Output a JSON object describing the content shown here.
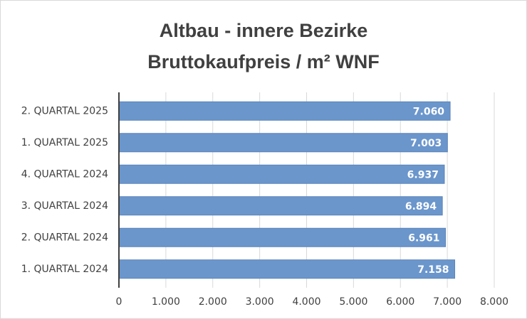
{
  "chart_data": {
    "type": "hbar",
    "title": [
      "Altbau - innere Bezirke",
      "Bruttokaufpreis / m² WNF"
    ],
    "categories": [
      "2. QUARTAL 2025",
      "1. QUARTAL 2025",
      "4. QUARTAL 2024",
      "3. QUARTAL 2024",
      "2. QUARTAL 2024",
      "1. QUARTAL 2024"
    ],
    "values": [
      7060,
      7003,
      6937,
      6894,
      6961,
      7158
    ],
    "value_labels": [
      "7.060",
      "7.003",
      "6.937",
      "6.894",
      "6.961",
      "7.158"
    ],
    "color": "#6b96cc",
    "xlim": [
      0,
      8000
    ],
    "xticks": [
      0,
      {
        "value": 1000,
        "label": "1.000"
      },
      {
        "value": 2000,
        "label": "2.000"
      },
      {
        "value": 3000,
        "label": "3.000"
      },
      {
        "value": 4000,
        "label": "4.000"
      },
      {
        "value": 5000,
        "label": "5.000"
      },
      {
        "value": 6000,
        "label": "6.000"
      },
      {
        "value": 7000,
        "label": "7.000"
      },
      {
        "value": 8000,
        "label": "8.000"
      }
    ],
    "grid": true
  }
}
